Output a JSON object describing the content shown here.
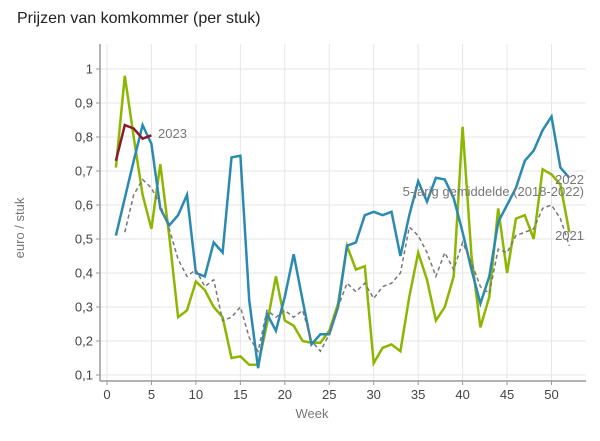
{
  "chart_data": {
    "type": "line",
    "title": "Prijzen van komkommer (per stuk)",
    "xlabel": "Week",
    "ylabel": "euro / stuk",
    "xlim": [
      0,
      53
    ],
    "ylim": [
      0.09,
      1.08
    ],
    "xticks": [
      0,
      5,
      10,
      15,
      20,
      25,
      30,
      35,
      40,
      45,
      50
    ],
    "xtick_labels": [
      "0",
      "5",
      "10",
      "15",
      "20",
      "25",
      "30",
      "35",
      "40",
      "45",
      "50"
    ],
    "yticks": [
      0.1,
      0.2,
      0.3,
      0.4,
      0.5,
      0.6,
      0.7,
      0.8,
      0.9,
      1.0
    ],
    "ytick_labels": [
      "0,1",
      "0,2",
      "0,3",
      "0,4",
      "0,5",
      "0,6",
      "0,7",
      "0,8",
      "0,9",
      "1"
    ],
    "grid": true,
    "series": [
      {
        "name": "2021",
        "label": "2021",
        "color": "#8db600",
        "dash": false,
        "x": [
          1,
          2,
          3,
          4,
          5,
          6,
          7,
          8,
          9,
          10,
          11,
          12,
          13,
          14,
          15,
          16,
          17,
          18,
          19,
          20,
          21,
          22,
          23,
          24,
          25,
          26,
          27,
          28,
          29,
          30,
          31,
          32,
          33,
          34,
          35,
          36,
          37,
          38,
          39,
          40,
          41,
          42,
          43,
          44,
          45,
          46,
          47,
          48,
          49,
          50,
          51,
          52
        ],
        "values": [
          0.71,
          0.98,
          0.8,
          0.63,
          0.53,
          0.72,
          0.51,
          0.27,
          0.29,
          0.375,
          0.35,
          0.3,
          0.27,
          0.15,
          0.155,
          0.13,
          0.13,
          0.25,
          0.39,
          0.26,
          0.245,
          0.2,
          0.195,
          0.195,
          0.23,
          0.31,
          0.48,
          0.41,
          0.42,
          0.135,
          0.18,
          0.19,
          0.17,
          0.33,
          0.46,
          0.38,
          0.26,
          0.3,
          0.39,
          0.83,
          0.45,
          0.24,
          0.33,
          0.59,
          0.4,
          0.56,
          0.57,
          0.5,
          0.705,
          0.69,
          0.66,
          0.52
        ]
      },
      {
        "name": "2022",
        "label": "2022",
        "color": "#2a8ab0",
        "dash": false,
        "x": [
          1,
          2,
          3,
          4,
          5,
          6,
          7,
          8,
          9,
          10,
          11,
          12,
          13,
          14,
          15,
          16,
          17,
          18,
          19,
          20,
          21,
          22,
          23,
          24,
          25,
          26,
          27,
          28,
          29,
          30,
          31,
          32,
          33,
          34,
          35,
          36,
          37,
          38,
          39,
          40,
          41,
          42,
          43,
          44,
          45,
          46,
          47,
          48,
          49,
          50,
          51,
          52
        ],
        "values": [
          0.51,
          0.62,
          0.73,
          0.835,
          0.78,
          0.59,
          0.54,
          0.57,
          0.63,
          0.4,
          0.39,
          0.49,
          0.46,
          0.74,
          0.745,
          0.32,
          0.12,
          0.28,
          0.23,
          0.33,
          0.455,
          0.32,
          0.19,
          0.22,
          0.22,
          0.3,
          0.48,
          0.49,
          0.57,
          0.58,
          0.57,
          0.58,
          0.45,
          0.57,
          0.67,
          0.61,
          0.68,
          0.675,
          0.62,
          0.52,
          0.41,
          0.31,
          0.39,
          0.55,
          0.6,
          0.65,
          0.73,
          0.76,
          0.82,
          0.86,
          0.71,
          0.68
        ]
      },
      {
        "name": "5-jarig gemiddelde (2018-2022)",
        "label": "5-jarig gemiddelde (2018-2022)",
        "color": "#777777",
        "dash": true,
        "x": [
          2,
          3,
          4,
          5,
          6,
          7,
          8,
          9,
          10,
          11,
          12,
          13,
          14,
          15,
          16,
          17,
          18,
          19,
          20,
          21,
          22,
          23,
          24,
          25,
          26,
          27,
          28,
          29,
          30,
          31,
          32,
          33,
          34,
          35,
          36,
          37,
          38,
          39,
          40,
          41,
          42,
          43,
          44,
          45,
          46,
          47,
          48,
          49,
          50,
          51,
          52
        ],
        "values": [
          0.52,
          0.63,
          0.675,
          0.65,
          0.6,
          0.53,
          0.44,
          0.39,
          0.41,
          0.36,
          0.38,
          0.26,
          0.27,
          0.3,
          0.21,
          0.17,
          0.29,
          0.27,
          0.29,
          0.27,
          0.29,
          0.2,
          0.17,
          0.22,
          0.3,
          0.37,
          0.345,
          0.37,
          0.325,
          0.36,
          0.37,
          0.4,
          0.535,
          0.51,
          0.46,
          0.39,
          0.46,
          0.41,
          0.49,
          0.43,
          0.36,
          0.34,
          0.47,
          0.46,
          0.51,
          0.52,
          0.53,
          0.59,
          0.6,
          0.56,
          0.48
        ]
      },
      {
        "name": "2023",
        "label": "2023",
        "color": "#8b1a2b",
        "dash": false,
        "x": [
          1,
          2,
          3,
          4,
          5
        ],
        "values": [
          0.73,
          0.835,
          0.825,
          0.795,
          0.805
        ]
      }
    ]
  }
}
